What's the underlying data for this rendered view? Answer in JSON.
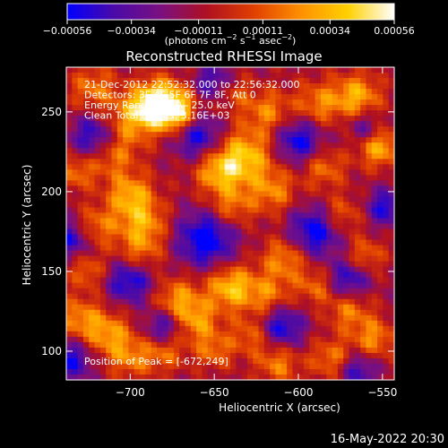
{
  "chart_data": {
    "type": "heatmap",
    "title": "Reconstructed RHESSI Image",
    "xlabel": "Heliocentric X (arcsec)",
    "ylabel": "Heliocentric Y (arcsec)",
    "xlim": [
      -738,
      -543
    ],
    "ylim": [
      82,
      278
    ],
    "x_ticks": [
      -700,
      -650,
      -600,
      -550
    ],
    "x_tick_labels": [
      "−700",
      "−650",
      "−600",
      "−550"
    ],
    "y_ticks": [
      100,
      150,
      200,
      250
    ],
    "y_tick_labels": [
      "100",
      "150",
      "200",
      "250"
    ],
    "colorbar": {
      "range": [
        -0.00056,
        0.00056
      ],
      "ticks": [
        -0.00056,
        -0.00034,
        -0.00011,
        0.00011,
        0.00034,
        0.00056
      ],
      "tick_labels": [
        "−0.00056",
        "−0.00034",
        "−0.00011",
        "0.00011",
        "0.00034",
        "0.00056"
      ],
      "unit_label": {
        "base": "(photons cm",
        "exp1": "−2",
        "mid": " s",
        "exp2": "−1",
        "mid2": " asec",
        "exp3": "−2",
        "end": ")"
      },
      "colors": [
        "#0000ff",
        "#4a0aa8",
        "#7a1080",
        "#b01020",
        "#e04000",
        "#ff9000",
        "#ffd000",
        "#ffffff"
      ]
    },
    "annotations": [
      "21-Dec-2012 22:52:32.000 to 22:56:32.000",
      "Detectors: 3F 4F 5F 6F 7F 8F, Att 0",
      "Energy Range: 12.0 - 25.0 keV",
      "Clean     Total counts: 3.16E+03"
    ],
    "peak_text": "Position of Peak = [-672,249]",
    "peak": {
      "x": -672,
      "y": 249
    },
    "blobs": [
      {
        "x": -672,
        "y": 249,
        "v": 0.00056,
        "s": 9
      },
      {
        "x": -682,
        "y": 258,
        "v": 0.00045,
        "s": 10
      },
      {
        "x": -690,
        "y": 252,
        "v": 0.00038,
        "s": 9
      },
      {
        "x": -705,
        "y": 240,
        "v": 0.00035,
        "s": 12
      },
      {
        "x": -722,
        "y": 265,
        "v": 0.0003,
        "s": 10
      },
      {
        "x": -712,
        "y": 222,
        "v": 0.00028,
        "s": 9
      },
      {
        "x": -732,
        "y": 212,
        "v": 0.0003,
        "s": 8
      },
      {
        "x": -700,
        "y": 198,
        "v": 0.00042,
        "s": 10
      },
      {
        "x": -692,
        "y": 180,
        "v": 0.00036,
        "s": 10
      },
      {
        "x": -720,
        "y": 178,
        "v": 0.0003,
        "s": 9
      },
      {
        "x": -695,
        "y": 160,
        "v": 0.00032,
        "s": 10
      },
      {
        "x": -725,
        "y": 150,
        "v": 0.00028,
        "s": 8
      },
      {
        "x": -730,
        "y": 120,
        "v": 0.00034,
        "s": 10
      },
      {
        "x": -712,
        "y": 110,
        "v": 0.00036,
        "s": 10
      },
      {
        "x": -700,
        "y": 95,
        "v": 0.00028,
        "s": 9
      },
      {
        "x": -672,
        "y": 132,
        "v": 0.00038,
        "s": 10
      },
      {
        "x": -660,
        "y": 118,
        "v": 0.00034,
        "s": 9
      },
      {
        "x": -680,
        "y": 100,
        "v": 0.0003,
        "s": 9
      },
      {
        "x": -650,
        "y": 100,
        "v": 0.00028,
        "s": 8
      },
      {
        "x": -640,
        "y": 140,
        "v": 0.0005,
        "s": 10
      },
      {
        "x": -632,
        "y": 222,
        "v": 0.00048,
        "s": 12
      },
      {
        "x": -648,
        "y": 212,
        "v": 0.00038,
        "s": 10
      },
      {
        "x": -640,
        "y": 190,
        "v": 0.0003,
        "s": 9
      },
      {
        "x": -618,
        "y": 250,
        "v": 0.00032,
        "s": 10
      },
      {
        "x": -640,
        "y": 262,
        "v": 0.00026,
        "s": 8
      },
      {
        "x": -615,
        "y": 200,
        "v": 0.00032,
        "s": 10
      },
      {
        "x": -608,
        "y": 158,
        "v": 0.00036,
        "s": 10
      },
      {
        "x": -618,
        "y": 135,
        "v": 0.0003,
        "s": 9
      },
      {
        "x": -628,
        "y": 110,
        "v": 0.00028,
        "s": 9
      },
      {
        "x": -612,
        "y": 92,
        "v": 0.00032,
        "s": 9
      },
      {
        "x": -588,
        "y": 255,
        "v": 0.00032,
        "s": 10
      },
      {
        "x": -565,
        "y": 260,
        "v": 0.00042,
        "s": 10
      },
      {
        "x": -552,
        "y": 228,
        "v": 0.00044,
        "s": 9
      },
      {
        "x": -585,
        "y": 215,
        "v": 0.0003,
        "s": 9
      },
      {
        "x": -575,
        "y": 185,
        "v": 0.0003,
        "s": 9
      },
      {
        "x": -590,
        "y": 140,
        "v": 0.00026,
        "s": 8
      },
      {
        "x": -570,
        "y": 125,
        "v": 0.0003,
        "s": 9
      },
      {
        "x": -555,
        "y": 108,
        "v": 0.00034,
        "s": 9
      },
      {
        "x": -580,
        "y": 95,
        "v": 0.00032,
        "s": 9
      },
      {
        "x": -560,
        "y": 160,
        "v": 0.00028,
        "s": 8
      },
      {
        "x": -720,
        "y": 235,
        "v": -0.0005,
        "s": 10
      },
      {
        "x": -660,
        "y": 235,
        "v": -0.00045,
        "s": 10
      },
      {
        "x": -700,
        "y": 145,
        "v": -0.00048,
        "s": 10
      },
      {
        "x": -680,
        "y": 115,
        "v": -0.0004,
        "s": 8
      },
      {
        "x": -655,
        "y": 170,
        "v": -0.00052,
        "s": 12
      },
      {
        "x": -600,
        "y": 232,
        "v": -0.00045,
        "s": 10
      },
      {
        "x": -590,
        "y": 175,
        "v": -0.0005,
        "s": 11
      },
      {
        "x": -570,
        "y": 145,
        "v": -0.0004,
        "s": 8
      },
      {
        "x": -610,
        "y": 115,
        "v": -0.00045,
        "s": 9
      },
      {
        "x": -735,
        "y": 95,
        "v": -0.0004,
        "s": 9
      },
      {
        "x": -735,
        "y": 170,
        "v": -0.0004,
        "s": 8
      },
      {
        "x": -650,
        "y": 268,
        "v": -0.00038,
        "s": 8
      },
      {
        "x": -560,
        "y": 240,
        "v": -0.0003,
        "s": 7
      },
      {
        "x": -548,
        "y": 190,
        "v": -0.0004,
        "s": 8
      },
      {
        "x": -565,
        "y": 88,
        "v": -0.00036,
        "s": 8
      }
    ]
  },
  "footer": {
    "date_time": "16-May-2022 20:30"
  }
}
